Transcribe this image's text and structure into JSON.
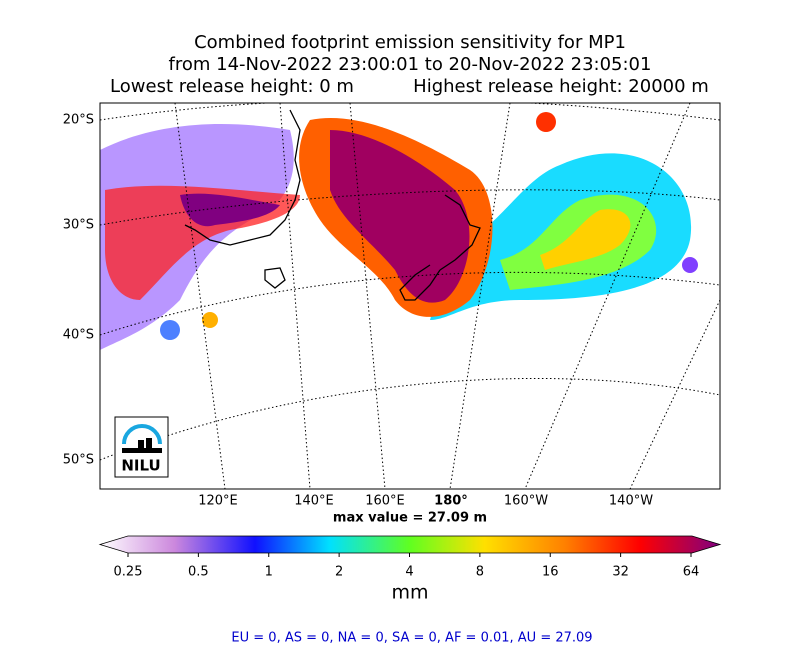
{
  "title": [
    "Combined footprint emission sensitivity for MP1",
    "from 14-Nov-2022 23:00:01 to 20-Nov-2022 23:05:01"
  ],
  "release": {
    "lowest": "Lowest release height: 0 m",
    "highest": "Highest release height: 20000 m"
  },
  "map": {
    "lat_labels": [
      "20°S",
      "30°S",
      "40°S",
      "50°S"
    ],
    "lon_labels": [
      "120°E",
      "140°E",
      "160°E",
      "180°",
      "160°W",
      "140°W"
    ],
    "logo": "NILU"
  },
  "max_value": "max value = 27.09 m",
  "colorbar": {
    "ticks": [
      "0.25",
      "0.5",
      "1",
      "2",
      "4",
      "8",
      "16",
      "32",
      "64"
    ],
    "unit": "mm"
  },
  "footer": "EU = 0,  AS = 0,  NA = 0,  SA = 0,  AF = 0.01,  AU = 27.09"
}
